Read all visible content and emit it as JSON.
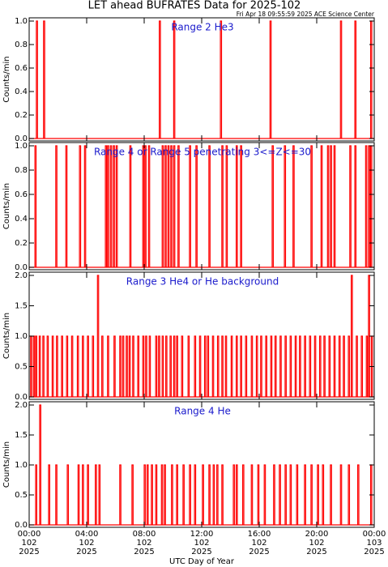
{
  "page": {
    "title": "LET ahead BUFRATES Data for 2025-102",
    "subtitle": "Fri Apr 18 09:55:59 2025 ACE Science Center",
    "xlabel": "UTC Day of Year",
    "xlim": [
      0,
      24
    ],
    "xticks": [
      {
        "value": 0,
        "label": "00:00"
      },
      {
        "value": 4,
        "label": "04:00"
      },
      {
        "value": 8,
        "label": "08:00"
      },
      {
        "value": 12,
        "label": "12:00"
      },
      {
        "value": 16,
        "label": "16:00"
      },
      {
        "value": 20,
        "label": "20:00"
      },
      {
        "value": 24,
        "label": "00:00"
      }
    ],
    "xtick_days": [
      "102",
      "102",
      "102",
      "102",
      "102",
      "102",
      "103"
    ],
    "xtick_years": [
      "2025",
      "2025",
      "2025",
      "2025",
      "2025",
      "2025",
      "2025"
    ]
  },
  "chart_data": [
    {
      "type": "bar",
      "title": "Range 2 He3",
      "ylabel": "Counts/min",
      "color": "#ff0000",
      "x": [
        0.5,
        1.0,
        9.05,
        10.05,
        13.3,
        16.75,
        21.65,
        22.65,
        23.75
      ],
      "values": [
        1,
        1,
        1,
        1,
        1,
        1,
        1,
        1,
        1
      ],
      "ylim": [
        0,
        1
      ],
      "yticks": [
        {
          "value": 0,
          "label": "0.0"
        },
        {
          "value": 0.2,
          "label": "0.2"
        },
        {
          "value": 0.4,
          "label": "0.4"
        },
        {
          "value": 0.6,
          "label": "0.6"
        },
        {
          "value": 0.8,
          "label": "0.8"
        },
        {
          "value": 1,
          "label": "1.0"
        }
      ]
    },
    {
      "type": "bar",
      "title": "Range 4 or Range 5 penetrating 3<=Z<=30",
      "ylabel": "Counts/min",
      "color": "#ff0000",
      "x": [
        0.4,
        1.85,
        2.55,
        3.5,
        3.85,
        5.3,
        5.45,
        5.65,
        5.85,
        6.05,
        7.0,
        7.9,
        8.05,
        8.3,
        9.25,
        9.45,
        9.65,
        9.85,
        10.05,
        10.35,
        11.15,
        11.6,
        12.5,
        13.4,
        13.7,
        14.4,
        14.7,
        16.9,
        17.75,
        18.35,
        19.6,
        20.3,
        20.75,
        20.95,
        21.2,
        22.3,
        22.65,
        23.4,
        23.6,
        23.75
      ],
      "values": [
        1,
        1,
        1,
        1,
        1,
        1,
        1,
        1,
        1,
        1,
        1,
        1,
        1,
        1,
        1,
        1,
        1,
        1,
        1,
        1,
        1,
        1,
        1,
        1,
        1,
        1,
        1,
        1,
        1,
        1,
        1,
        1,
        1,
        1,
        1,
        1,
        1,
        1,
        1,
        1
      ],
      "ylim": [
        0,
        1
      ],
      "yticks": [
        {
          "value": 0,
          "label": "0.0"
        },
        {
          "value": 0.2,
          "label": "0.2"
        },
        {
          "value": 0.4,
          "label": "0.4"
        },
        {
          "value": 0.6,
          "label": "0.6"
        },
        {
          "value": 0.8,
          "label": "0.8"
        },
        {
          "value": 1,
          "label": "1.0"
        }
      ]
    },
    {
      "type": "bar",
      "title": "Range 3 He4 or He background",
      "ylabel": "Counts/min",
      "color": "#ff0000",
      "x": [
        0.1,
        0.3,
        0.45,
        0.7,
        0.95,
        1.25,
        1.6,
        1.9,
        2.25,
        2.6,
        2.95,
        3.35,
        3.7,
        4.05,
        4.4,
        4.75,
        5.05,
        5.45,
        5.9,
        6.3,
        6.5,
        6.75,
        6.95,
        7.2,
        7.55,
        7.9,
        8.1,
        8.35,
        8.8,
        9.0,
        9.25,
        9.5,
        9.8,
        10.05,
        10.25,
        10.6,
        11.05,
        11.5,
        11.85,
        12.2,
        12.4,
        12.75,
        13.1,
        13.4,
        13.65,
        14.05,
        14.4,
        14.7,
        15.05,
        15.45,
        15.8,
        16.1,
        16.45,
        16.8,
        17.1,
        17.45,
        17.8,
        18.15,
        18.5,
        18.8,
        19.15,
        19.5,
        19.85,
        20.2,
        20.5,
        20.85,
        21.2,
        21.55,
        21.85,
        22.2,
        22.4,
        22.75,
        23.1,
        23.45,
        23.6,
        23.8
      ],
      "values": [
        1,
        1,
        1,
        1,
        1,
        1,
        1,
        1,
        1,
        1,
        1,
        1,
        1,
        1,
        1,
        2,
        1,
        1,
        1,
        1,
        1,
        1,
        1,
        1,
        1,
        1,
        1,
        1,
        1,
        1,
        1,
        1,
        1,
        1,
        1,
        1,
        1,
        1,
        1,
        1,
        1,
        1,
        1,
        1,
        1,
        1,
        1,
        1,
        1,
        1,
        1,
        1,
        1,
        1,
        1,
        1,
        1,
        1,
        1,
        1,
        1,
        1,
        1,
        1,
        1,
        1,
        1,
        1,
        1,
        1,
        2,
        1,
        1,
        1,
        2,
        1
      ],
      "ylim": [
        0,
        2
      ],
      "yticks": [
        {
          "value": 0,
          "label": "0.0"
        },
        {
          "value": 0.5,
          "label": "0.5"
        },
        {
          "value": 1,
          "label": "1.0"
        },
        {
          "value": 1.5,
          "label": "1.5"
        },
        {
          "value": 2,
          "label": "2.0"
        }
      ]
    },
    {
      "type": "bar",
      "title": "Range 4 He",
      "ylabel": "Counts/min",
      "color": "#ff0000",
      "x": [
        0.45,
        0.73,
        1.35,
        1.85,
        2.65,
        3.4,
        3.7,
        4.05,
        4.6,
        4.85,
        6.3,
        7.15,
        8.0,
        8.2,
        8.5,
        8.8,
        9.2,
        9.4,
        9.9,
        10.25,
        10.7,
        11.15,
        11.5,
        12.05,
        12.5,
        12.8,
        13.05,
        13.4,
        14.2,
        14.4,
        14.85,
        15.45,
        15.9,
        16.35,
        17.0,
        17.4,
        17.8,
        18.15,
        18.6,
        19.15,
        19.6,
        20.05,
        20.4,
        20.95,
        21.65,
        22.2,
        22.85,
        23.75
      ],
      "values": [
        1,
        2,
        1,
        1,
        1,
        1,
        1,
        1,
        1,
        1,
        1,
        1,
        1,
        1,
        1,
        1,
        1,
        1,
        1,
        1,
        1,
        1,
        1,
        1,
        1,
        1,
        1,
        1,
        1,
        1,
        1,
        1,
        1,
        1,
        1,
        1,
        1,
        1,
        1,
        1,
        1,
        1,
        1,
        1,
        1,
        1,
        1,
        1
      ],
      "ylim": [
        0,
        2
      ],
      "yticks": [
        {
          "value": 0,
          "label": "0.0"
        },
        {
          "value": 0.5,
          "label": "0.5"
        },
        {
          "value": 1,
          "label": "1.0"
        },
        {
          "value": 1.5,
          "label": "1.5"
        },
        {
          "value": 2,
          "label": "2.0"
        }
      ]
    }
  ]
}
